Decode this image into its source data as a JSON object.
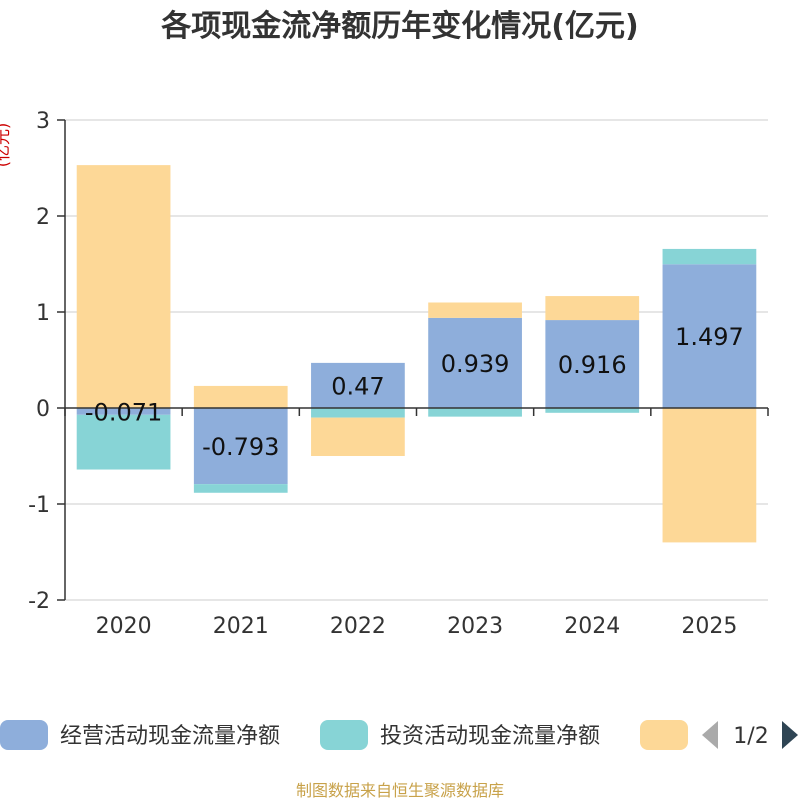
{
  "chart_data": {
    "type": "bar",
    "stacked": true,
    "title": "各项现金流净额历年变化情况(亿元)",
    "ylabel": "(亿元)",
    "ylim": [
      -2,
      3
    ],
    "yticks": [
      3,
      2,
      1,
      0,
      -1,
      -2
    ],
    "grid": true,
    "categories": [
      "2020",
      "2021",
      "2022",
      "2023",
      "2024",
      "2025"
    ],
    "series": [
      {
        "name": "经营活动现金流量净额",
        "color": "#8eaedb",
        "values": [
          -0.071,
          -0.793,
          0.47,
          0.939,
          0.916,
          1.497
        ],
        "labels": [
          "-0.071",
          "-0.793",
          "0.47",
          "0.939",
          "0.916",
          "1.497"
        ]
      },
      {
        "name": "投资活动现金流量净额",
        "color": "#87d4d6",
        "values": [
          -0.57,
          -0.09,
          -0.1,
          -0.09,
          -0.05,
          0.16
        ]
      },
      {
        "name": "",
        "color": "#fdd897",
        "values": [
          2.53,
          0.23,
          -0.4,
          0.16,
          0.25,
          -1.4
        ]
      }
    ],
    "legend": {
      "placement": "bottom",
      "page": "1/2"
    },
    "source": "制图数据来自恒生聚源数据库",
    "colors": {
      "axis": "#333333",
      "grid": "#cccccc",
      "ylabel": "#cc0000",
      "source": "#c8a24a",
      "pager_inactive": "#aaaaaa",
      "pager_active": "#2f4554"
    }
  }
}
